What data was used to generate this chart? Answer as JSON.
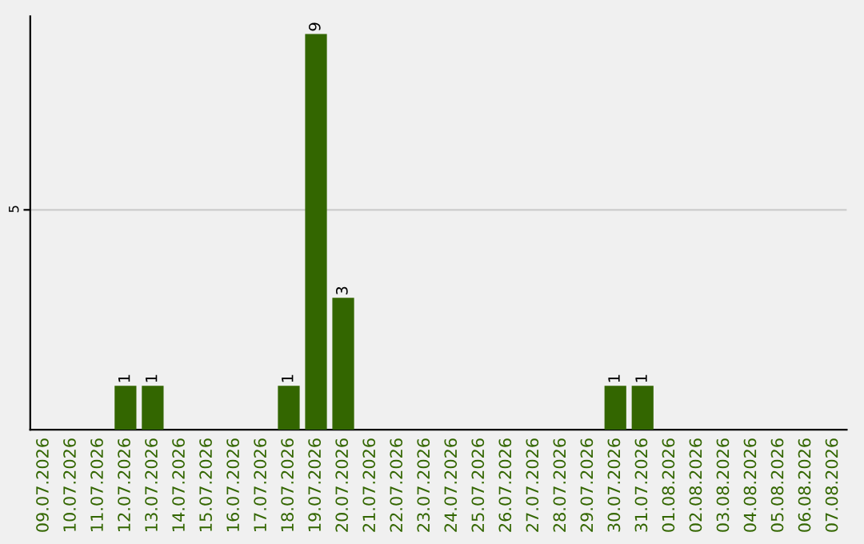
{
  "chart_data": {
    "type": "bar",
    "categories": [
      "09.07.2026",
      "10.07.2026",
      "11.07.2026",
      "12.07.2026",
      "13.07.2026",
      "14.07.2026",
      "15.07.2026",
      "16.07.2026",
      "17.07.2026",
      "18.07.2026",
      "19.07.2026",
      "20.07.2026",
      "21.07.2026",
      "22.07.2026",
      "23.07.2026",
      "24.07.2026",
      "25.07.2026",
      "26.07.2026",
      "27.07.2026",
      "28.07.2026",
      "29.07.2026",
      "30.07.2026",
      "31.07.2026",
      "01.08.2026",
      "02.08.2026",
      "03.08.2026",
      "04.08.2026",
      "05.08.2026",
      "06.08.2026",
      "07.08.2026"
    ],
    "values": [
      0,
      0,
      0,
      1,
      1,
      0,
      0,
      0,
      0,
      1,
      9,
      3,
      0,
      0,
      0,
      0,
      0,
      0,
      0,
      0,
      0,
      1,
      1,
      0,
      0,
      0,
      0,
      0,
      0,
      0
    ],
    "value_labels": [
      null,
      null,
      null,
      "1",
      "1",
      null,
      null,
      null,
      null,
      "1",
      "9",
      "3",
      null,
      null,
      null,
      null,
      null,
      null,
      null,
      null,
      null,
      "1",
      "1",
      null,
      null,
      null,
      null,
      null,
      null,
      null
    ],
    "color": "#336600",
    "ylim": [
      0,
      9.4
    ],
    "yticks": [
      5
    ],
    "grid": "y",
    "legend": false
  }
}
